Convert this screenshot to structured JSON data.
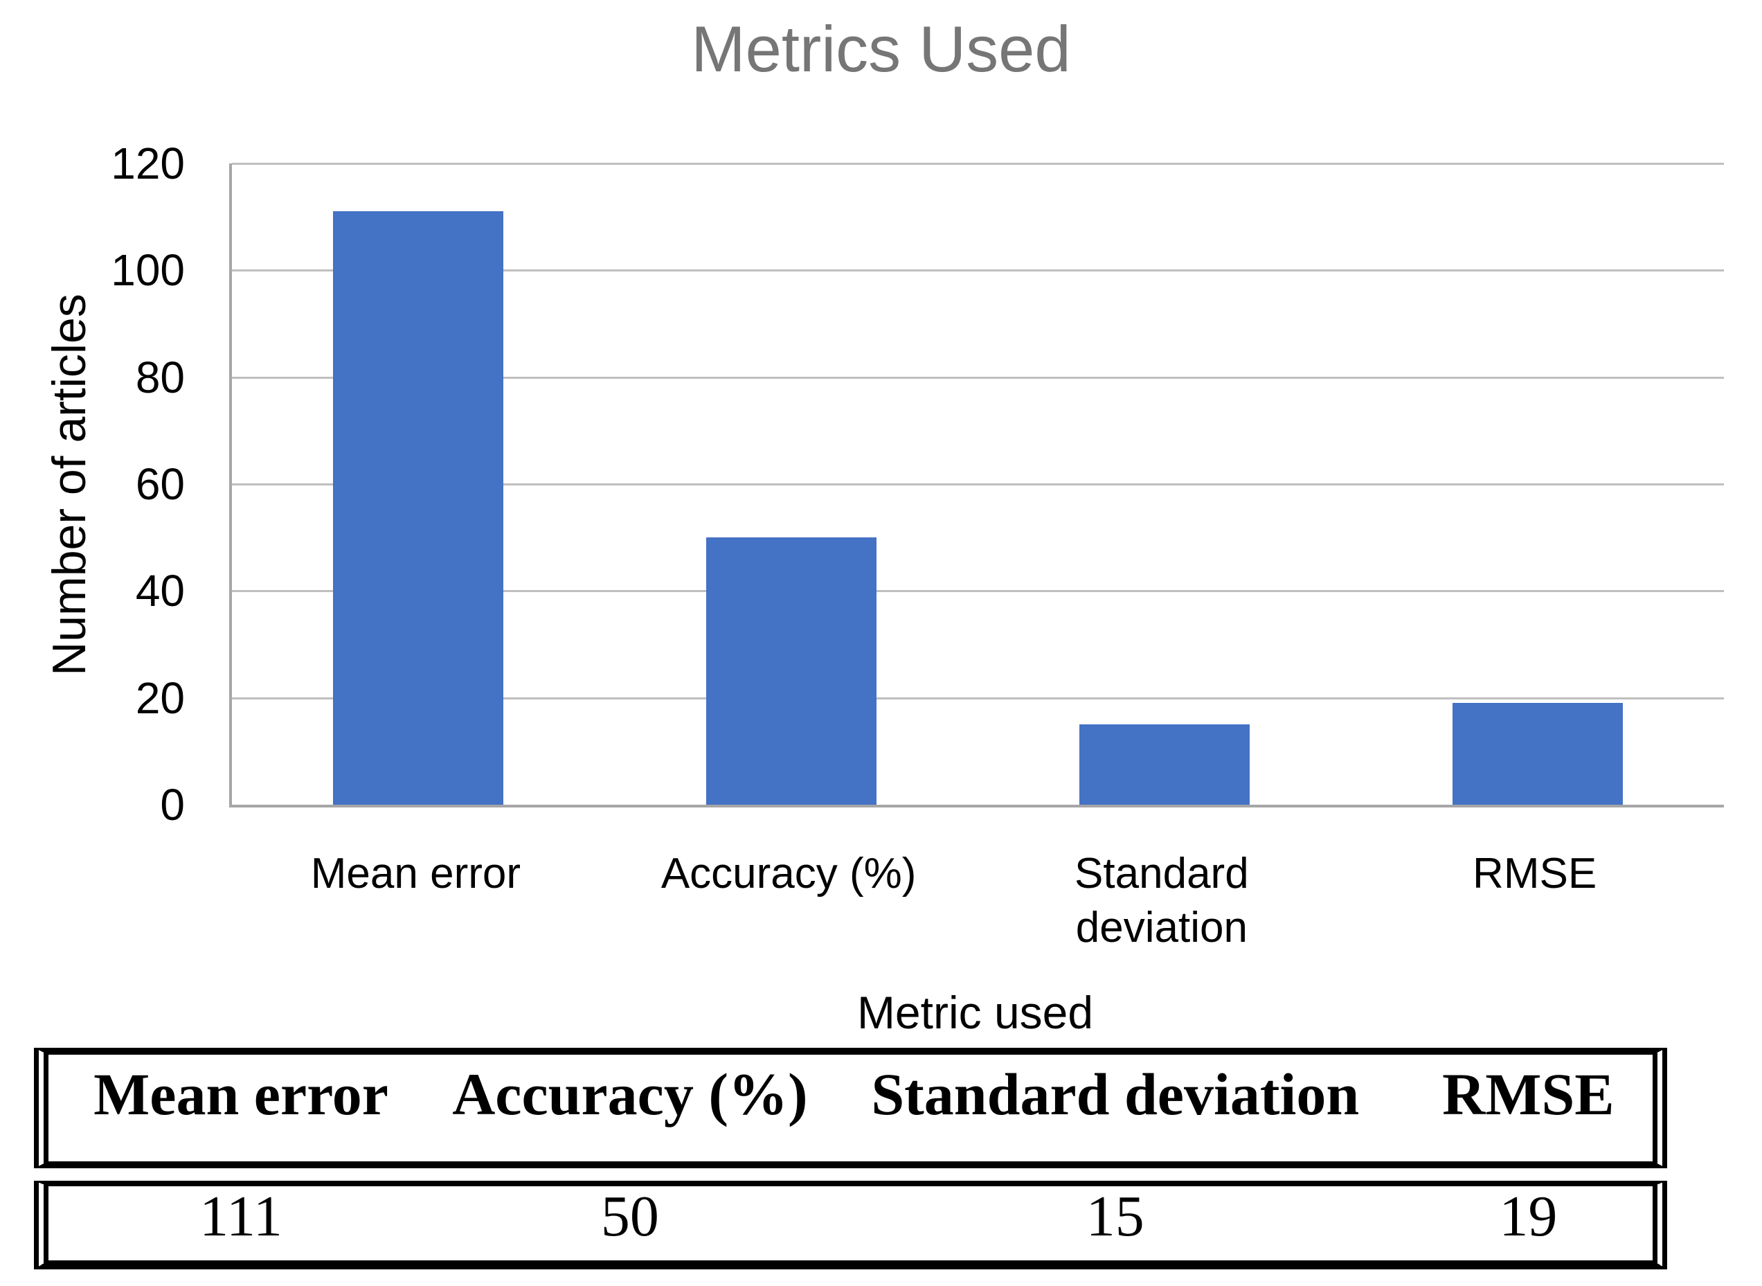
{
  "chart_data": {
    "type": "bar",
    "title": "Metrics Used",
    "categories": [
      "Mean error",
      "Accuracy (%)",
      "Standard deviation",
      "RMSE"
    ],
    "values": [
      111,
      50,
      15,
      19
    ],
    "xlabel": "Metric used",
    "ylabel": "Number of articles",
    "ylim": [
      0,
      120
    ],
    "yticks": [
      0,
      20,
      40,
      60,
      80,
      100,
      120
    ],
    "grid": "horizontal",
    "legend_position": "none",
    "colors": {
      "bar": "#4472C4",
      "gridline": "#BFBFBF",
      "axis": "#A6A6A6",
      "title": "#767676",
      "text": "#000000"
    }
  },
  "table": {
    "headers": [
      "Mean error",
      "Accuracy (%)",
      "Standard deviation",
      "RMSE"
    ],
    "rows": [
      [
        "111",
        "50",
        "15",
        "19"
      ]
    ]
  }
}
